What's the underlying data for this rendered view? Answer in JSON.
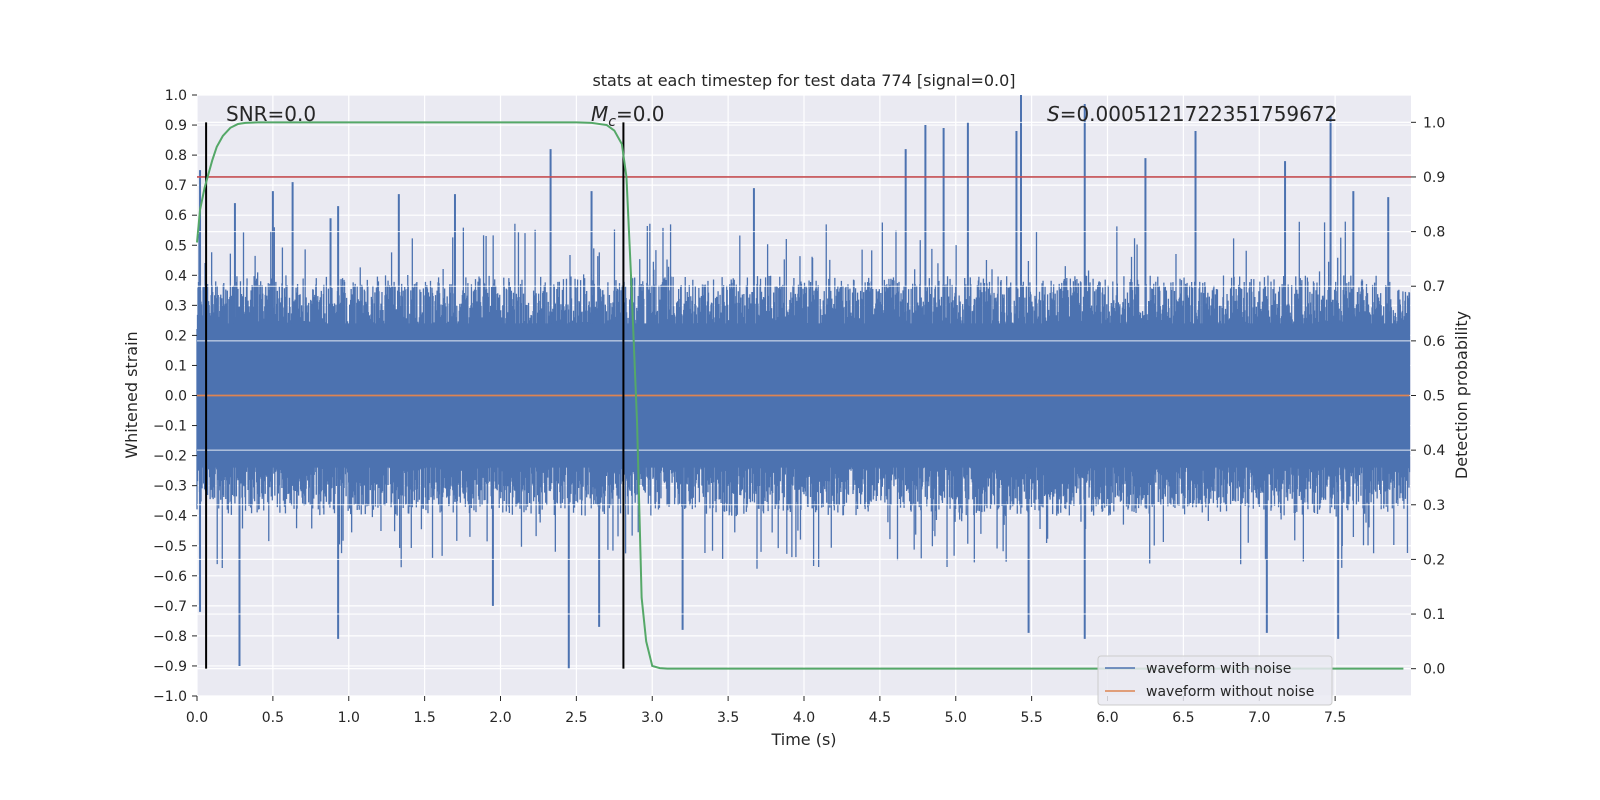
{
  "chart_data": {
    "type": "line",
    "title": "stats at each timestep for test data 774 [signal=0.0]",
    "xlabel": "Time (s)",
    "ylabel_left": "Whitened strain",
    "ylabel_right": "Detection probability",
    "xlim": [
      0.0,
      8.0
    ],
    "ylim_left": [
      -1.0,
      1.0
    ],
    "ylim_right": [
      -0.05,
      1.05
    ],
    "xticks": [
      0.0,
      0.5,
      1.0,
      1.5,
      2.0,
      2.5,
      3.0,
      3.5,
      4.0,
      4.5,
      5.0,
      5.5,
      6.0,
      6.5,
      7.0,
      7.5
    ],
    "xtick_labels": [
      "0.0",
      "0.5",
      "1.0",
      "1.5",
      "2.0",
      "2.5",
      "3.0",
      "3.5",
      "4.0",
      "4.5",
      "5.0",
      "5.5",
      "6.0",
      "6.5",
      "7.0",
      "7.5"
    ],
    "yticks_left": [
      1.0,
      0.9,
      0.8,
      0.7,
      0.6,
      0.5,
      0.4,
      0.3,
      0.2,
      0.1,
      0.0,
      -0.1,
      -0.2,
      -0.3,
      -0.4,
      -0.5,
      -0.6,
      -0.7,
      -0.8,
      -0.9,
      -1.0
    ],
    "ytick_labels_left": [
      "1.0",
      "0.9",
      "0.8",
      "0.7",
      "0.6",
      "0.5",
      "0.4",
      "0.3",
      "0.2",
      "0.1",
      "0.0",
      "−0.1",
      "−0.2",
      "−0.3",
      "−0.4",
      "−0.5",
      "−0.6",
      "−0.7",
      "−0.8",
      "−0.9",
      "−1.0"
    ],
    "yticks_right": [
      1.0,
      0.9,
      0.8,
      0.7,
      0.6,
      0.5,
      0.4,
      0.3,
      0.2,
      0.1,
      0.0
    ],
    "ytick_labels_right": [
      "1.0",
      "0.9",
      "0.8",
      "0.7",
      "0.6",
      "0.5",
      "0.4",
      "0.3",
      "0.2",
      "0.1",
      "0.0"
    ],
    "grid": true,
    "annotations": {
      "snr": "SNR=0.0",
      "mc_symbol": "M",
      "mc_sub": "c",
      "mc_value": "=0.0",
      "s_symbol": "S",
      "s_value": "=0.0005121722351759672"
    },
    "threshold_line": {
      "axis": "right",
      "y": 0.9,
      "color": "#c44e52"
    },
    "vertical_lines": {
      "x": [
        0.06,
        2.81
      ],
      "color": "#000000"
    },
    "series": [
      {
        "name": "waveform with noise",
        "axis": "left",
        "color": "#4c72b0",
        "style": "dense noise",
        "x_range": [
          0.0,
          7.99
        ],
        "typical_envelope": [
          -0.4,
          0.4
        ],
        "spikes": [
          {
            "x": 0.02,
            "y": 0.75
          },
          {
            "x": 0.02,
            "y": -0.72
          },
          {
            "x": 0.25,
            "y": 0.64
          },
          {
            "x": 0.28,
            "y": -0.9
          },
          {
            "x": 0.5,
            "y": 0.68
          },
          {
            "x": 0.63,
            "y": 0.71
          },
          {
            "x": 0.88,
            "y": 0.59
          },
          {
            "x": 0.93,
            "y": 0.63
          },
          {
            "x": 0.93,
            "y": -0.81
          },
          {
            "x": 1.33,
            "y": 0.67
          },
          {
            "x": 1.7,
            "y": 0.67
          },
          {
            "x": 1.95,
            "y": -0.7
          },
          {
            "x": 2.33,
            "y": 0.82
          },
          {
            "x": 2.45,
            "y": -0.91
          },
          {
            "x": 2.6,
            "y": 0.68
          },
          {
            "x": 2.65,
            "y": -0.77
          },
          {
            "x": 3.2,
            "y": -0.78
          },
          {
            "x": 3.67,
            "y": 0.69
          },
          {
            "x": 4.67,
            "y": 0.82
          },
          {
            "x": 4.8,
            "y": 0.9
          },
          {
            "x": 4.92,
            "y": 0.89
          },
          {
            "x": 5.08,
            "y": 0.91
          },
          {
            "x": 5.4,
            "y": 0.88
          },
          {
            "x": 5.43,
            "y": 1.0
          },
          {
            "x": 5.48,
            "y": -0.79
          },
          {
            "x": 5.85,
            "y": 0.97
          },
          {
            "x": 5.85,
            "y": -0.81
          },
          {
            "x": 6.25,
            "y": 0.79
          },
          {
            "x": 6.58,
            "y": 0.88
          },
          {
            "x": 7.05,
            "y": -0.79
          },
          {
            "x": 7.17,
            "y": 0.78
          },
          {
            "x": 7.47,
            "y": 0.93
          },
          {
            "x": 7.52,
            "y": -0.81
          },
          {
            "x": 7.62,
            "y": 0.68
          },
          {
            "x": 7.85,
            "y": 0.66
          }
        ]
      },
      {
        "name": "waveform without noise",
        "axis": "left",
        "color": "#dd8452",
        "x": [
          0.0,
          7.99
        ],
        "y": [
          0.0,
          0.0
        ]
      },
      {
        "name": "detection probability",
        "axis": "right",
        "color": "#55a868",
        "x": [
          0.0,
          0.02,
          0.05,
          0.08,
          0.1,
          0.13,
          0.17,
          0.22,
          0.27,
          0.32,
          0.4,
          0.6,
          1.0,
          1.5,
          2.0,
          2.5,
          2.6,
          2.7,
          2.75,
          2.8,
          2.83,
          2.86,
          2.9,
          2.93,
          2.96,
          3.0,
          3.05,
          3.1,
          3.2,
          3.5,
          4.0,
          5.0,
          6.0,
          7.0,
          7.95
        ],
        "y": [
          0.78,
          0.84,
          0.88,
          0.91,
          0.93,
          0.955,
          0.975,
          0.99,
          0.997,
          0.999,
          1.0,
          1.0,
          1.0,
          1.0,
          1.0,
          1.0,
          0.999,
          0.995,
          0.985,
          0.96,
          0.9,
          0.72,
          0.45,
          0.13,
          0.05,
          0.005,
          0.001,
          0.0,
          0.0,
          0.0,
          0.0,
          0.0,
          0.0,
          0.0,
          0.0
        ]
      }
    ],
    "legend": {
      "placement": "lower-right",
      "entries": [
        "waveform with noise",
        "waveform without noise"
      ]
    }
  }
}
